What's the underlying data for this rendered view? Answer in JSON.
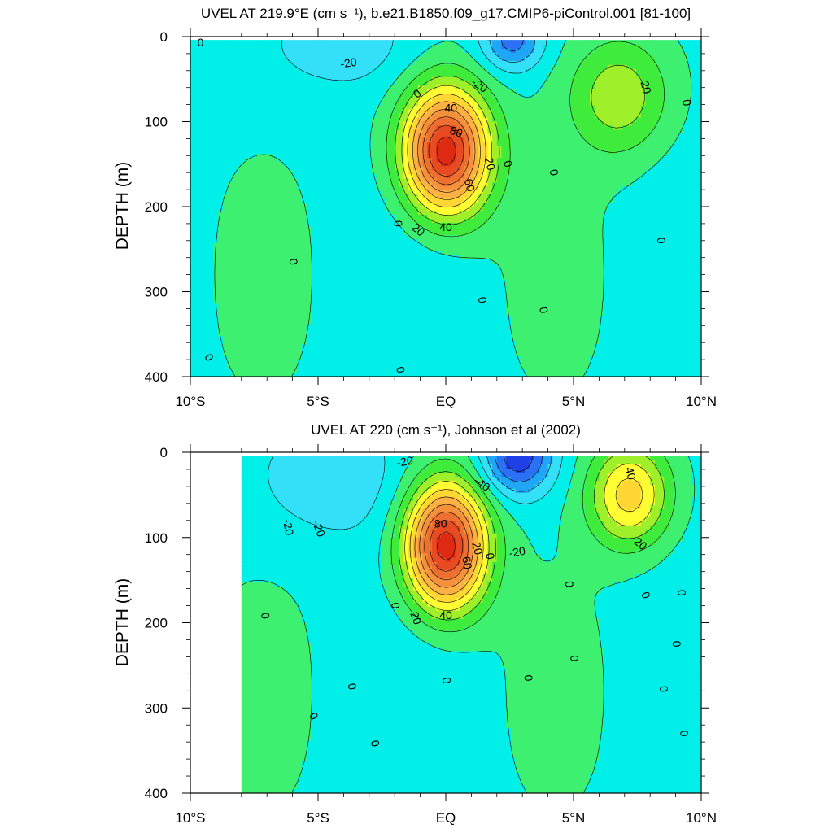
{
  "chart_data": [
    {
      "type": "contour",
      "title": "UVEL AT 219.9°E (cm s⁻¹), b.e21.B1850.f09_g17.CMIP6-piControl.001 [81-100]",
      "ylabel": "DEPTH (m)",
      "xlabel": "",
      "xlim": [
        -10,
        10
      ],
      "ylim": [
        0,
        400
      ],
      "y_reversed": true,
      "x_ticks": [
        -10,
        -5,
        0,
        5,
        10
      ],
      "x_tick_labels": [
        "10°S",
        "5°S",
        "EQ",
        "5°N",
        "10°N"
      ],
      "y_ticks": [
        0,
        100,
        200,
        300,
        400
      ],
      "y_tick_labels": [
        "0",
        "100",
        "200",
        "300",
        "400"
      ],
      "data_extent": {
        "x": [
          -10,
          10
        ],
        "y": [
          4,
          400
        ]
      },
      "contour_interval": 10,
      "levels": [
        -40,
        -30,
        -20,
        -10,
        0,
        10,
        20,
        30,
        40,
        50,
        60,
        70,
        80,
        90,
        100
      ],
      "features": [
        {
          "kind": "jet",
          "lon": 0.0,
          "depth": 135,
          "lon_halfwidth": 1.7,
          "depth_halfwidth": 75,
          "peak": 100
        },
        {
          "kind": "jet",
          "lon": 6.8,
          "depth": 70,
          "lon_halfwidth": 2.0,
          "depth_halfwidth": 70,
          "peak": 30
        },
        {
          "kind": "jet",
          "lon": 2.6,
          "depth": 5,
          "lon_halfwidth": 1.2,
          "depth_halfwidth": 35,
          "peak": -32
        },
        {
          "kind": "jet",
          "lon": -4.2,
          "depth": 10,
          "lon_halfwidth": 2.8,
          "depth_halfwidth": 50,
          "peak": -14
        }
      ],
      "contour_labels": [
        {
          "text": "0",
          "lon": -9.6,
          "depth": 8,
          "rot": 0
        },
        {
          "text": "-20",
          "lon": -3.8,
          "depth": 32,
          "rot": -8
        },
        {
          "text": "-20",
          "lon": 1.3,
          "depth": 58,
          "rot": 35
        },
        {
          "text": "0",
          "lon": -1.1,
          "depth": 68,
          "rot": -40
        },
        {
          "text": "40",
          "lon": 0.2,
          "depth": 85,
          "rot": 0
        },
        {
          "text": "80",
          "lon": 0.4,
          "depth": 113,
          "rot": 20
        },
        {
          "text": "20",
          "lon": 1.7,
          "depth": 150,
          "rot": 75
        },
        {
          "text": "0",
          "lon": 2.4,
          "depth": 150,
          "rot": 75
        },
        {
          "text": "60",
          "lon": 0.9,
          "depth": 175,
          "rot": 75
        },
        {
          "text": "0",
          "lon": 4.2,
          "depth": 160,
          "rot": 80
        },
        {
          "text": "20",
          "lon": -1.1,
          "depth": 228,
          "rot": 40
        },
        {
          "text": "40",
          "lon": 0.0,
          "depth": 225,
          "rot": 0
        },
        {
          "text": "0",
          "lon": -1.9,
          "depth": 220,
          "rot": 85
        },
        {
          "text": "0",
          "lon": -6.0,
          "depth": 265,
          "rot": 80
        },
        {
          "text": "0",
          "lon": 1.4,
          "depth": 310,
          "rot": 80
        },
        {
          "text": "0",
          "lon": 3.8,
          "depth": 322,
          "rot": 80
        },
        {
          "text": "0",
          "lon": -9.3,
          "depth": 378,
          "rot": 60
        },
        {
          "text": "0",
          "lon": -1.8,
          "depth": 392,
          "rot": 80
        },
        {
          "text": "20",
          "lon": 7.8,
          "depth": 60,
          "rot": 75
        },
        {
          "text": "0",
          "lon": 9.4,
          "depth": 78,
          "rot": 80
        },
        {
          "text": "0",
          "lon": 8.4,
          "depth": 240,
          "rot": 85
        }
      ]
    },
    {
      "type": "contour",
      "title": "UVEL AT 220 (cm s⁻¹), Johnson et al (2002)",
      "ylabel": "DEPTH (m)",
      "xlabel": "",
      "xlim": [
        -10,
        10
      ],
      "ylim": [
        0,
        400
      ],
      "y_reversed": true,
      "x_ticks": [
        -10,
        -5,
        0,
        5,
        10
      ],
      "x_tick_labels": [
        "10°S",
        "5°S",
        "EQ",
        "5°N",
        "10°N"
      ],
      "y_ticks": [
        0,
        100,
        200,
        300,
        400
      ],
      "y_tick_labels": [
        "0",
        "100",
        "200",
        "300",
        "400"
      ],
      "data_extent": {
        "x": [
          -8,
          10
        ],
        "y": [
          4,
          400
        ]
      },
      "contour_interval": 10,
      "levels": [
        -40,
        -30,
        -20,
        -10,
        0,
        10,
        20,
        30,
        40,
        50,
        60,
        70,
        80,
        90,
        100
      ],
      "features": [
        {
          "kind": "jet",
          "lon": 0.0,
          "depth": 110,
          "lon_halfwidth": 1.6,
          "depth_halfwidth": 75,
          "peak": 100
        },
        {
          "kind": "jet",
          "lon": 7.2,
          "depth": 50,
          "lon_halfwidth": 1.6,
          "depth_halfwidth": 60,
          "peak": 48
        },
        {
          "kind": "jet",
          "lon": 2.8,
          "depth": 5,
          "lon_halfwidth": 1.4,
          "depth_halfwidth": 45,
          "peak": -45
        },
        {
          "kind": "jet",
          "lon": -4.5,
          "depth": 30,
          "lon_halfwidth": 3.0,
          "depth_halfwidth": 70,
          "peak": -15
        }
      ],
      "contour_labels": [
        {
          "text": "-20",
          "lon": -1.6,
          "depth": 12,
          "rot": -10
        },
        {
          "text": "-40",
          "lon": 1.4,
          "depth": 38,
          "rot": 35
        },
        {
          "text": "80",
          "lon": -0.2,
          "depth": 85,
          "rot": 0
        },
        {
          "text": "-20",
          "lon": -6.2,
          "depth": 88,
          "rot": 80
        },
        {
          "text": "-20",
          "lon": -5.0,
          "depth": 90,
          "rot": 70
        },
        {
          "text": "40",
          "lon": 7.2,
          "depth": 25,
          "rot": 75
        },
        {
          "text": "20",
          "lon": 1.2,
          "depth": 113,
          "rot": 75
        },
        {
          "text": "0",
          "lon": 1.7,
          "depth": 122,
          "rot": 80
        },
        {
          "text": "-20",
          "lon": 2.8,
          "depth": 118,
          "rot": -10
        },
        {
          "text": "60",
          "lon": 0.8,
          "depth": 130,
          "rot": 80
        },
        {
          "text": "20",
          "lon": 7.6,
          "depth": 108,
          "rot": 40
        },
        {
          "text": "0",
          "lon": 4.8,
          "depth": 155,
          "rot": 85
        },
        {
          "text": "0",
          "lon": 9.2,
          "depth": 165,
          "rot": 85
        },
        {
          "text": "0",
          "lon": 7.8,
          "depth": 168,
          "rot": 70
        },
        {
          "text": "0",
          "lon": -2.0,
          "depth": 180,
          "rot": 85
        },
        {
          "text": "0",
          "lon": -7.1,
          "depth": 192,
          "rot": 80
        },
        {
          "text": "20",
          "lon": -1.2,
          "depth": 195,
          "rot": 70
        },
        {
          "text": "40",
          "lon": 0.0,
          "depth": 192,
          "rot": 0
        },
        {
          "text": "0",
          "lon": 9.0,
          "depth": 225,
          "rot": 85
        },
        {
          "text": "0",
          "lon": 5.0,
          "depth": 242,
          "rot": 85
        },
        {
          "text": "0",
          "lon": 0.0,
          "depth": 268,
          "rot": 80
        },
        {
          "text": "0",
          "lon": 3.2,
          "depth": 265,
          "rot": 85
        },
        {
          "text": "0",
          "lon": -3.7,
          "depth": 275,
          "rot": 80
        },
        {
          "text": "0",
          "lon": 8.5,
          "depth": 278,
          "rot": 80
        },
        {
          "text": "0",
          "lon": -5.2,
          "depth": 310,
          "rot": 60
        },
        {
          "text": "0",
          "lon": -2.8,
          "depth": 342,
          "rot": 75
        },
        {
          "text": "0",
          "lon": 9.3,
          "depth": 330,
          "rot": 85
        }
      ]
    }
  ]
}
